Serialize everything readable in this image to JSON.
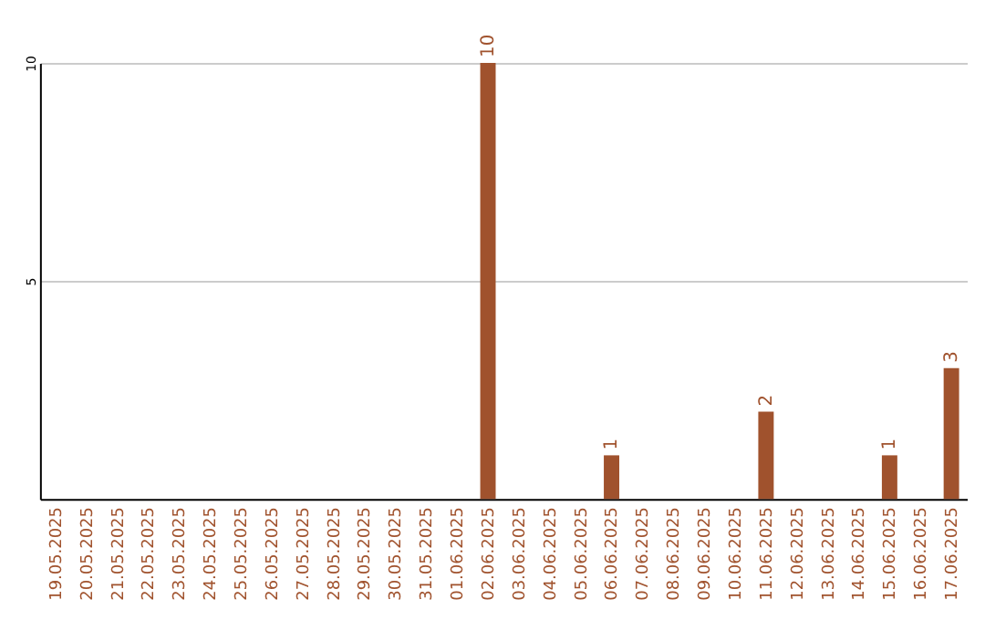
{
  "chart_data": {
    "type": "bar",
    "categories": [
      "19.05.2025",
      "20.05.2025",
      "21.05.2025",
      "22.05.2025",
      "23.05.2025",
      "24.05.2025",
      "25.05.2025",
      "26.05.2025",
      "27.05.2025",
      "28.05.2025",
      "29.05.2025",
      "30.05.2025",
      "31.05.2025",
      "01.06.2025",
      "02.06.2025",
      "03.06.2025",
      "04.06.2025",
      "05.06.2025",
      "06.06.2025",
      "07.06.2025",
      "08.06.2025",
      "09.06.2025",
      "10.06.2025",
      "11.06.2025",
      "12.06.2025",
      "13.06.2025",
      "14.06.2025",
      "15.06.2025",
      "16.06.2025",
      "17.06.2025"
    ],
    "values": [
      0,
      0,
      0,
      0,
      0,
      0,
      0,
      0,
      0,
      0,
      0,
      0,
      0,
      0,
      10,
      0,
      0,
      0,
      1,
      0,
      0,
      0,
      0,
      2,
      0,
      0,
      0,
      1,
      0,
      3
    ],
    "value_labels": [
      null,
      null,
      null,
      null,
      null,
      null,
      null,
      null,
      null,
      null,
      null,
      null,
      null,
      null,
      "10",
      null,
      null,
      null,
      "1",
      null,
      null,
      null,
      null,
      "2",
      null,
      null,
      null,
      "1",
      null,
      "3"
    ],
    "color": "#a0522d",
    "ylim": [
      0,
      10
    ],
    "yticks": [
      5,
      10
    ],
    "grid": "y"
  }
}
